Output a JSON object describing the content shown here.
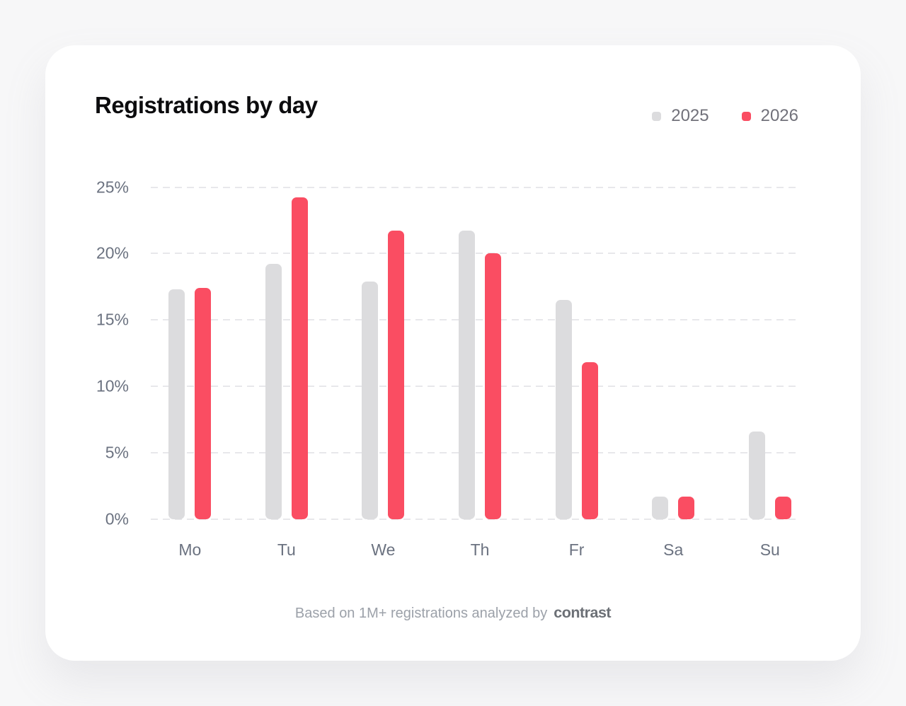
{
  "page": {
    "title": "Registrations by day",
    "footer": {
      "text": "Based on 1M+ registrations analyzed by",
      "brand": "contrast"
    }
  },
  "legend": {
    "items": [
      {
        "label": "2025",
        "color": "#dcdcde"
      },
      {
        "label": "2026",
        "color": "#fa4d62"
      }
    ]
  },
  "chart_data": {
    "type": "bar",
    "title": "Registrations by day",
    "categories": [
      "Mo",
      "Tu",
      "We",
      "Th",
      "Fr",
      "Sa",
      "Su"
    ],
    "series": [
      {
        "name": "2025",
        "color": "#dcdcde",
        "values": [
          17.3,
          19.2,
          17.9,
          21.7,
          16.5,
          1.7,
          6.6
        ]
      },
      {
        "name": "2026",
        "color": "#fa4d62",
        "values": [
          17.4,
          24.2,
          21.7,
          20.0,
          11.8,
          1.7,
          1.7
        ]
      }
    ],
    "xlabel": "",
    "ylabel": "",
    "ylim": [
      0,
      25
    ],
    "yticks": [
      {
        "value": 0,
        "label": "0%"
      },
      {
        "value": 5,
        "label": "5%"
      },
      {
        "value": 10,
        "label": "10%"
      },
      {
        "value": 15,
        "label": "15%"
      },
      {
        "value": 20,
        "label": "20%"
      },
      {
        "value": 25,
        "label": "25%"
      }
    ],
    "grid": "horizontal-dashed",
    "legend_position": "top-right",
    "footnote": "Based on 1M+ registrations analyzed by contrast"
  }
}
